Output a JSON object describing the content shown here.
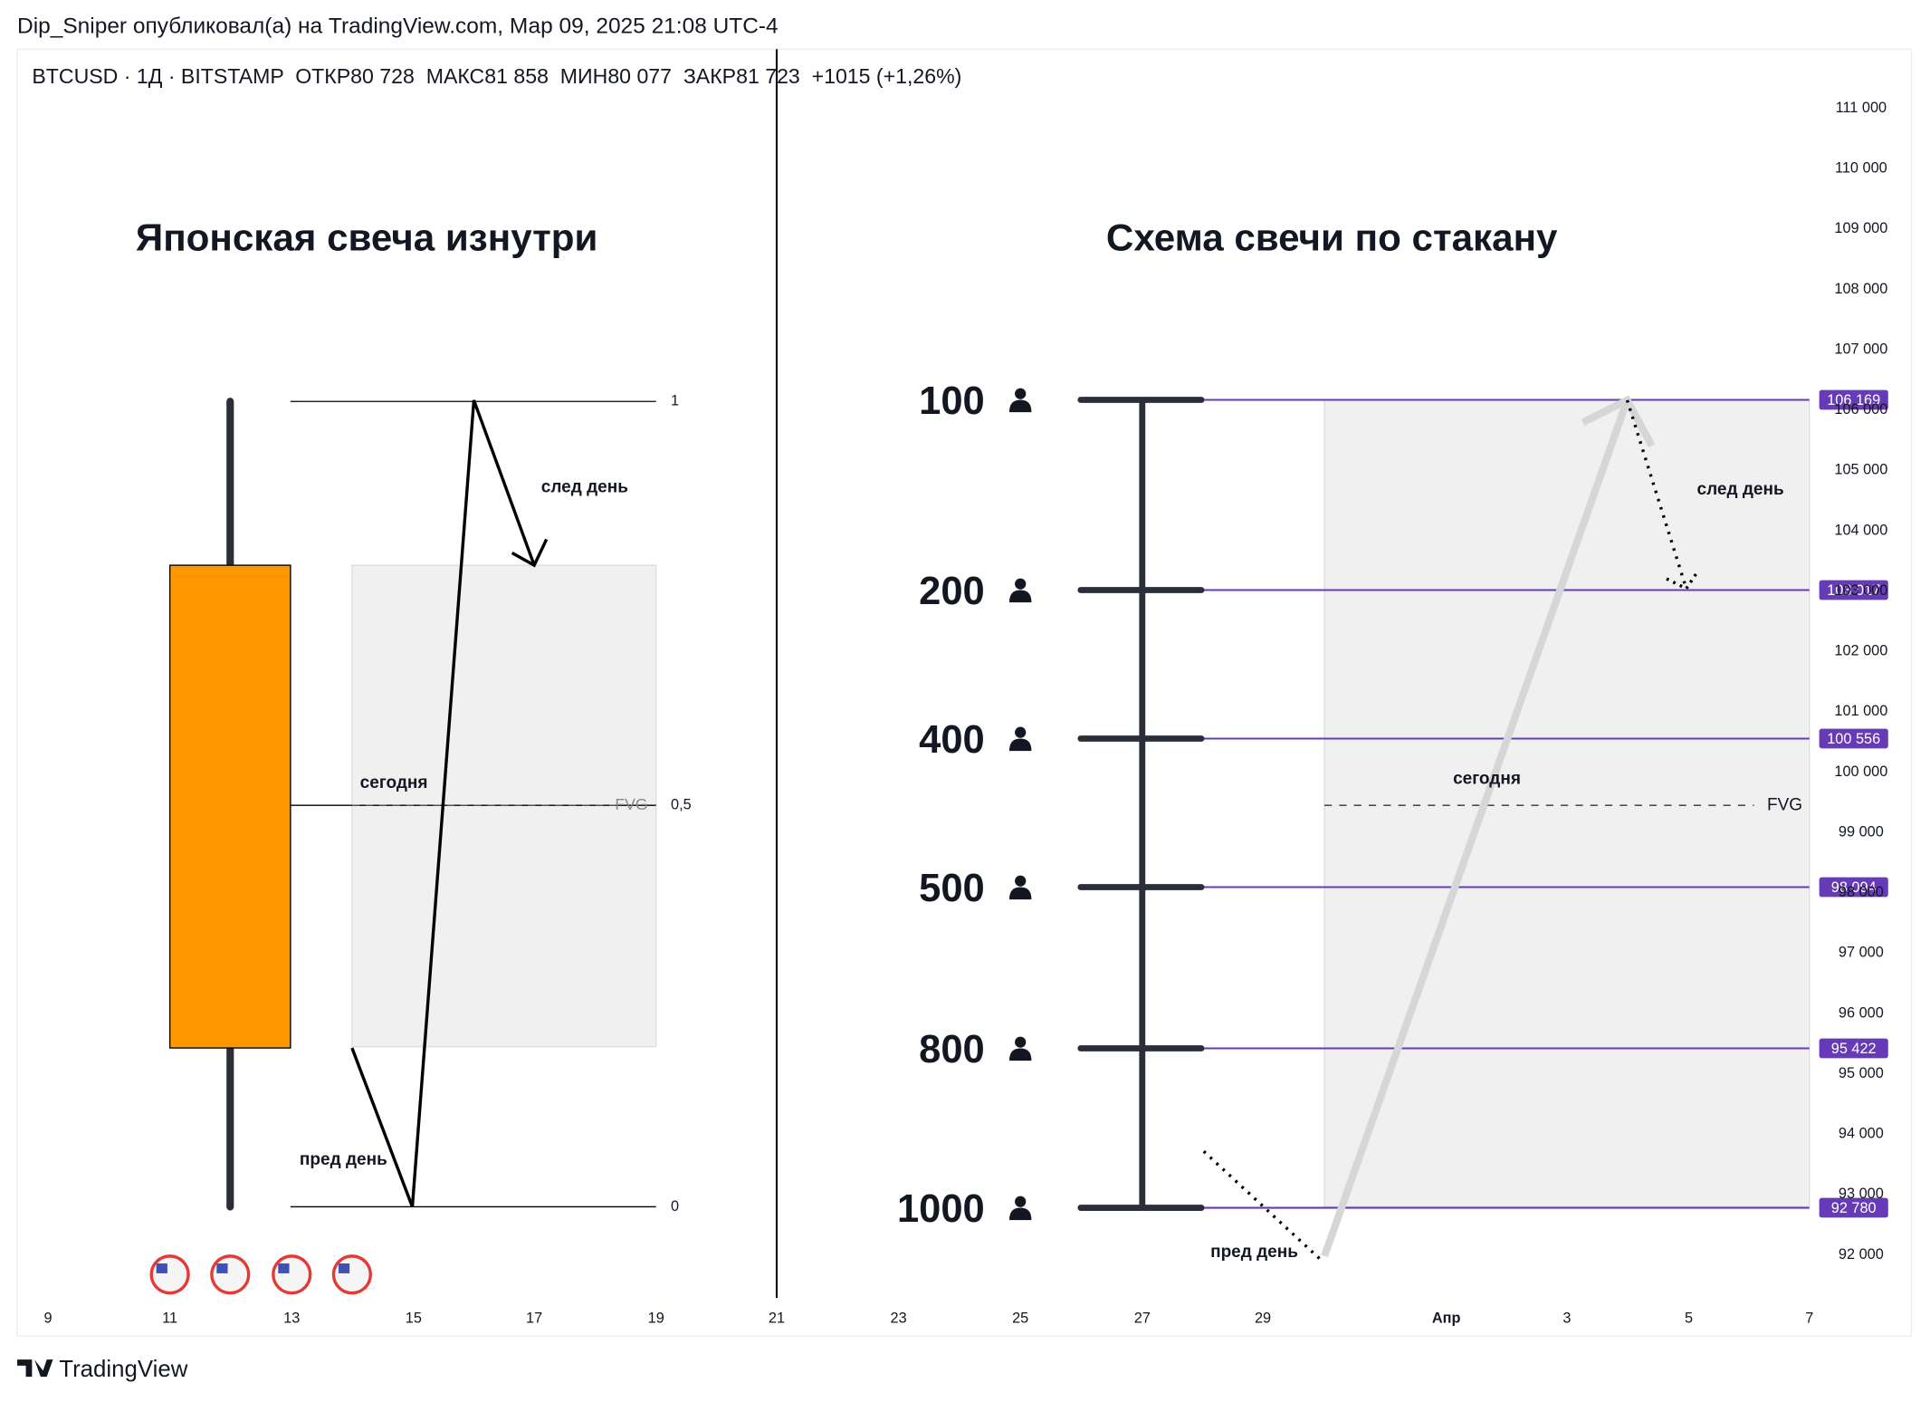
{
  "header": {
    "author_line": "Dip_Sniper опубликовал(а) на TradingView.com, Мар 09, 2025 21:08 UTC-4",
    "symbol_line": "BTCUSD · 1Д · BITSTAMP  ОТКР80 728  МАКС81 858  МИН80 077  ЗАКР81 723  +1015 (+1,26%)"
  },
  "titles": {
    "left": "Японская свеча изнутри",
    "right": "Схема свечи по стакану"
  },
  "left_diagram": {
    "level_labels": [
      "1",
      "0,5",
      "0"
    ],
    "annotations": {
      "next_day": "след день",
      "today": "сегодня",
      "prev_day": "пред день",
      "fvg": "FVG"
    }
  },
  "right_diagram": {
    "levels": [
      {
        "volume": "100",
        "price": 106169,
        "price_label": "106 169"
      },
      {
        "volume": "200",
        "price": 103017,
        "price_label": "103 017"
      },
      {
        "volume": "400",
        "price": 100556,
        "price_label": "100 556"
      },
      {
        "volume": "500",
        "price": 98094,
        "price_label": "98 094"
      },
      {
        "volume": "800",
        "price": 95422,
        "price_label": "95 422"
      },
      {
        "volume": "1000",
        "price": 92780,
        "price_label": "92 780"
      }
    ],
    "annotations": {
      "next_day": "след день",
      "today": "сегодня",
      "prev_day": "пред день",
      "fvg": "FVG"
    }
  },
  "price_axis": {
    "ticks": [
      {
        "value": 111000,
        "label": "111 000"
      },
      {
        "value": 110000,
        "label": "110 000"
      },
      {
        "value": 109000,
        "label": "109 000"
      },
      {
        "value": 108000,
        "label": "108 000"
      },
      {
        "value": 107000,
        "label": "107 000"
      },
      {
        "value": 106000,
        "label": "106 000"
      },
      {
        "value": 105000,
        "label": "105 000"
      },
      {
        "value": 104000,
        "label": "104 000"
      },
      {
        "value": 103000,
        "label": "103 000"
      },
      {
        "value": 102000,
        "label": "102 000"
      },
      {
        "value": 101000,
        "label": "101 000"
      },
      {
        "value": 100000,
        "label": "100 000"
      },
      {
        "value": 99000,
        "label": "99 000"
      },
      {
        "value": 98000,
        "label": "98 000"
      },
      {
        "value": 97000,
        "label": "97 000"
      },
      {
        "value": 96000,
        "label": "96 000"
      },
      {
        "value": 95000,
        "label": "95 000"
      },
      {
        "value": 94000,
        "label": "94 000"
      },
      {
        "value": 93000,
        "label": "93 000"
      },
      {
        "value": 92000,
        "label": "92 000"
      }
    ]
  },
  "time_axis": {
    "labels": [
      "9",
      "11",
      "13",
      "15",
      "17",
      "19",
      "21",
      "23",
      "25",
      "27",
      "29",
      "Апр",
      "3",
      "5",
      "7"
    ]
  },
  "footer": {
    "brand": "TradingView"
  }
}
